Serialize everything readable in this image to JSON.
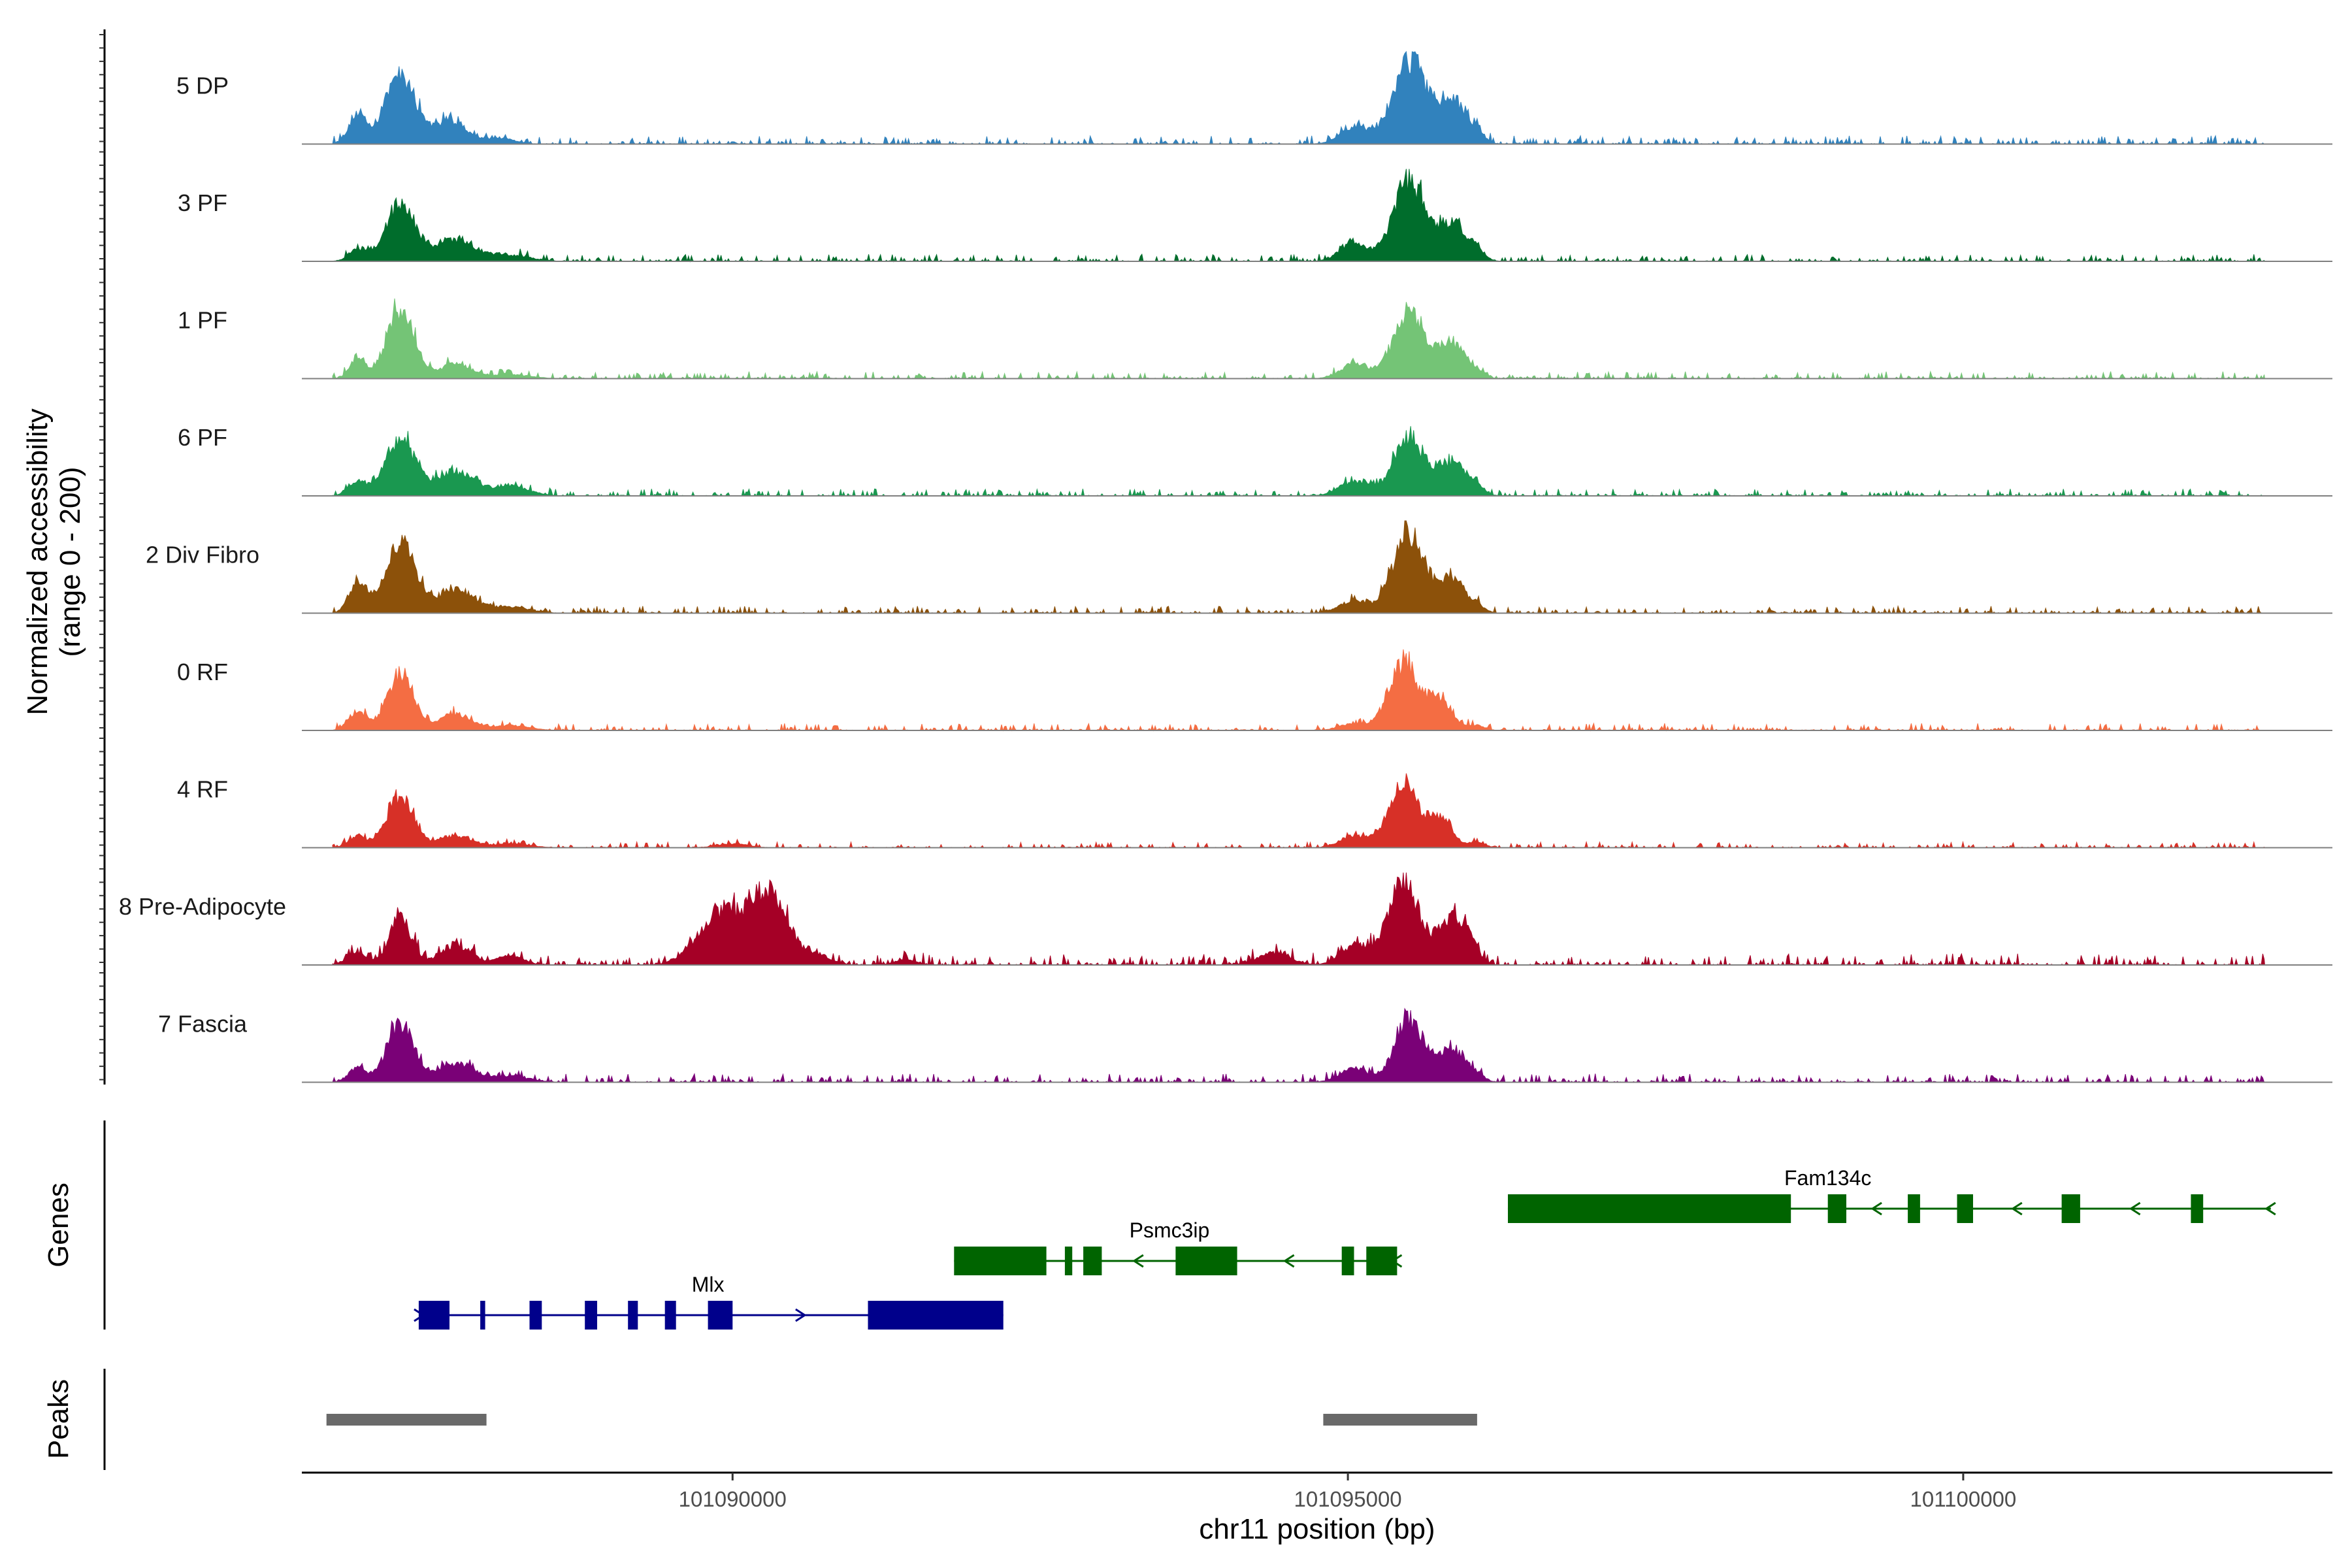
{
  "chart_data": {
    "type": "area",
    "chromosome": "chr11",
    "xlabel": "chr11 position (bp)",
    "xlim": [
      101086500,
      101103000
    ],
    "x_ticks": [
      101090000,
      101095000,
      101100000
    ],
    "x_tick_labels": [
      "101090000",
      "101095000",
      "101100000"
    ],
    "ylabel": "Normalized accessibility",
    "ylabel_range": "(range 0 - 200)",
    "ylim": [
      0,
      200
    ],
    "tracks": [
      {
        "name": "5 DP",
        "color": "#3182BD",
        "peaks": [
          [
            101086950,
            60,
            70
          ],
          [
            101087300,
            150,
            120
          ],
          [
            101087700,
            50,
            130
          ],
          [
            101088100,
            12,
            120
          ],
          [
            101095050,
            35,
            110
          ],
          [
            101095500,
            170,
            140
          ],
          [
            101095850,
            90,
            110
          ],
          [
            101096050,
            20,
            60
          ]
        ],
        "noise": 6
      },
      {
        "name": "3 PF",
        "color": "#006D2C",
        "peaks": [
          [
            101086950,
            25,
            70
          ],
          [
            101087300,
            120,
            120
          ],
          [
            101087750,
            45,
            160
          ],
          [
            101088200,
            12,
            160
          ],
          [
            101095050,
            40,
            110
          ],
          [
            101095500,
            170,
            130
          ],
          [
            101095850,
            80,
            110
          ],
          [
            101096050,
            20,
            60
          ]
        ],
        "noise": 5
      },
      {
        "name": "1 PF",
        "color": "#74C476",
        "peaks": [
          [
            101086950,
            45,
            60
          ],
          [
            101087300,
            150,
            110
          ],
          [
            101087750,
            30,
            130
          ],
          [
            101088200,
            8,
            150
          ],
          [
            101095050,
            30,
            110
          ],
          [
            101095500,
            140,
            130
          ],
          [
            101095850,
            75,
            100
          ],
          [
            101096050,
            15,
            60
          ]
        ],
        "noise": 5
      },
      {
        "name": "6 PF",
        "color": "#1A9850",
        "peaks": [
          [
            101086950,
            30,
            70
          ],
          [
            101087300,
            120,
            120
          ],
          [
            101087750,
            50,
            150
          ],
          [
            101088200,
            20,
            150
          ],
          [
            101095050,
            30,
            120
          ],
          [
            101095500,
            120,
            130
          ],
          [
            101095850,
            70,
            110
          ],
          [
            101096050,
            15,
            60
          ]
        ],
        "noise": 5
      },
      {
        "name": "2 Div Fibro",
        "color": "#8C510A",
        "peaks": [
          [
            101086950,
            60,
            70
          ],
          [
            101087300,
            150,
            120
          ],
          [
            101087750,
            50,
            150
          ],
          [
            101088200,
            12,
            150
          ],
          [
            101095050,
            25,
            120
          ],
          [
            101095500,
            170,
            130
          ],
          [
            101095850,
            70,
            100
          ],
          [
            101096050,
            15,
            60
          ]
        ],
        "noise": 5
      },
      {
        "name": "0 RF",
        "color": "#F46D43",
        "peaks": [
          [
            101086950,
            40,
            70
          ],
          [
            101087300,
            120,
            110
          ],
          [
            101087750,
            35,
            130
          ],
          [
            101088200,
            10,
            150
          ],
          [
            101095050,
            15,
            110
          ],
          [
            101095450,
            140,
            120
          ],
          [
            101095750,
            65,
            100
          ],
          [
            101096050,
            10,
            60
          ]
        ],
        "noise": 5
      },
      {
        "name": "4 RF",
        "color": "#D73027",
        "peaks": [
          [
            101086950,
            25,
            70
          ],
          [
            101087300,
            110,
            110
          ],
          [
            101087750,
            25,
            130
          ],
          [
            101088200,
            8,
            150
          ],
          [
            101090000,
            8,
            120
          ],
          [
            101095050,
            25,
            110
          ],
          [
            101095450,
            130,
            120
          ],
          [
            101095750,
            60,
            100
          ],
          [
            101096050,
            12,
            60
          ]
        ],
        "noise": 4
      },
      {
        "name": "8 Pre-Adipocyte",
        "color": "#A50026",
        "peaks": [
          [
            101086950,
            25,
            80
          ],
          [
            101087300,
            100,
            90
          ],
          [
            101087750,
            40,
            130
          ],
          [
            101088200,
            20,
            100
          ],
          [
            101089900,
            110,
            180
          ],
          [
            101090300,
            150,
            150
          ],
          [
            101090700,
            20,
            100
          ],
          [
            101091400,
            12,
            80
          ],
          [
            101094400,
            25,
            130
          ],
          [
            101095050,
            40,
            110
          ],
          [
            101095450,
            170,
            130
          ],
          [
            101095850,
            100,
            110
          ],
          [
            101096000,
            25,
            60
          ]
        ],
        "noise": 8
      },
      {
        "name": "7 Fascia",
        "color": "#7A0177",
        "peaks": [
          [
            101086950,
            30,
            70
          ],
          [
            101087300,
            120,
            110
          ],
          [
            101087750,
            40,
            150
          ],
          [
            101088200,
            12,
            150
          ],
          [
            101095050,
            30,
            110
          ],
          [
            101095500,
            130,
            120
          ],
          [
            101095850,
            70,
            100
          ],
          [
            101096050,
            15,
            60
          ]
        ],
        "noise": 6
      }
    ],
    "genes": [
      {
        "name": "Mlx",
        "color": "#00008B",
        "start": 101087450,
        "end": 101092200,
        "strand": "+",
        "label_x": 101089800,
        "exons": [
          [
            101087450,
            101087700
          ],
          [
            101087950,
            101087990
          ],
          [
            101088350,
            101088450
          ],
          [
            101088800,
            101088900
          ],
          [
            101089150,
            101089230
          ],
          [
            101089450,
            101089540
          ],
          [
            101089800,
            101090000
          ],
          [
            101091100,
            101092200
          ]
        ]
      },
      {
        "name": "Psmc3ip",
        "color": "#006400",
        "start": 101091800,
        "end": 101095400,
        "strand": "-",
        "label_x": 101093550,
        "exons": [
          [
            101091800,
            101092550
          ],
          [
            101092700,
            101092760
          ],
          [
            101092850,
            101093000
          ],
          [
            101093600,
            101094100
          ],
          [
            101094950,
            101095050
          ],
          [
            101095150,
            101095400
          ]
        ]
      },
      {
        "name": "Fam134c",
        "color": "#006400",
        "start": 101096300,
        "end": 101102500,
        "strand": "-",
        "label_x": 101098900,
        "exons": [
          [
            101096300,
            101098600
          ],
          [
            101098900,
            101099050
          ],
          [
            101099550,
            101099650
          ],
          [
            101099950,
            101100080
          ],
          [
            101100800,
            101100950
          ],
          [
            101101850,
            101101950
          ]
        ]
      }
    ],
    "peaks_track": [
      [
        101086700,
        101088000
      ],
      [
        101094800,
        101096050
      ]
    ],
    "peaks_color": "#696969",
    "panel_labels": {
      "genes": "Genes",
      "peaks": "Peaks"
    }
  }
}
